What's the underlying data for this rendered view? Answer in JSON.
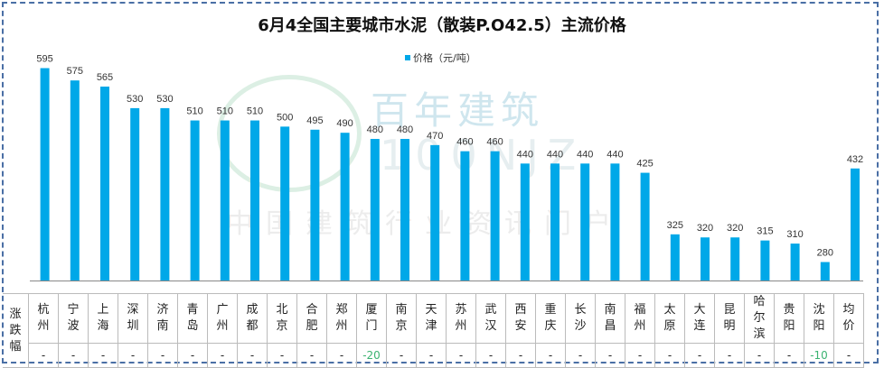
{
  "chart_data": {
    "type": "bar",
    "title": "6月4全国主要城市水泥（散装P.O42.5）主流价格",
    "legend": [
      {
        "name": "价格（元/吨）",
        "color": "#00a8e8",
        "position": "top-center"
      }
    ],
    "categories": [
      "杭州",
      "宁波",
      "上海",
      "深圳",
      "济南",
      "青岛",
      "广州",
      "成都",
      "北京",
      "合肥",
      "郑州",
      "厦门",
      "南京",
      "天津",
      "苏州",
      "武汉",
      "西安",
      "重庆",
      "长沙",
      "南昌",
      "福州",
      "太原",
      "大连",
      "昆明",
      "哈尔滨",
      "贵阳",
      "沈阳",
      "均价"
    ],
    "series": [
      {
        "name": "价格（元/吨）",
        "values": [
          595,
          575,
          565,
          530,
          530,
          510,
          510,
          510,
          500,
          495,
          490,
          480,
          480,
          470,
          460,
          460,
          440,
          440,
          440,
          440,
          425,
          325,
          320,
          320,
          315,
          310,
          280,
          432
        ]
      }
    ],
    "ylim": [
      250,
      650
    ],
    "grid": false,
    "yaxis_visible": false
  },
  "table": {
    "row_header": "涨跌幅",
    "changes": [
      "-",
      "-",
      "-",
      "-",
      "-",
      "-",
      "-",
      "-",
      "-",
      "-",
      "-",
      "-20",
      "-",
      "-",
      "-",
      "-",
      "-",
      "-",
      "-",
      "-",
      "-",
      "-",
      "-",
      "-",
      "-",
      "-",
      "-10",
      "-"
    ],
    "negative_color": "#3cb371"
  },
  "watermark": {
    "brand": "百年建筑",
    "code": "100NJZ",
    "slogan": "中国建筑行业资讯门户"
  }
}
